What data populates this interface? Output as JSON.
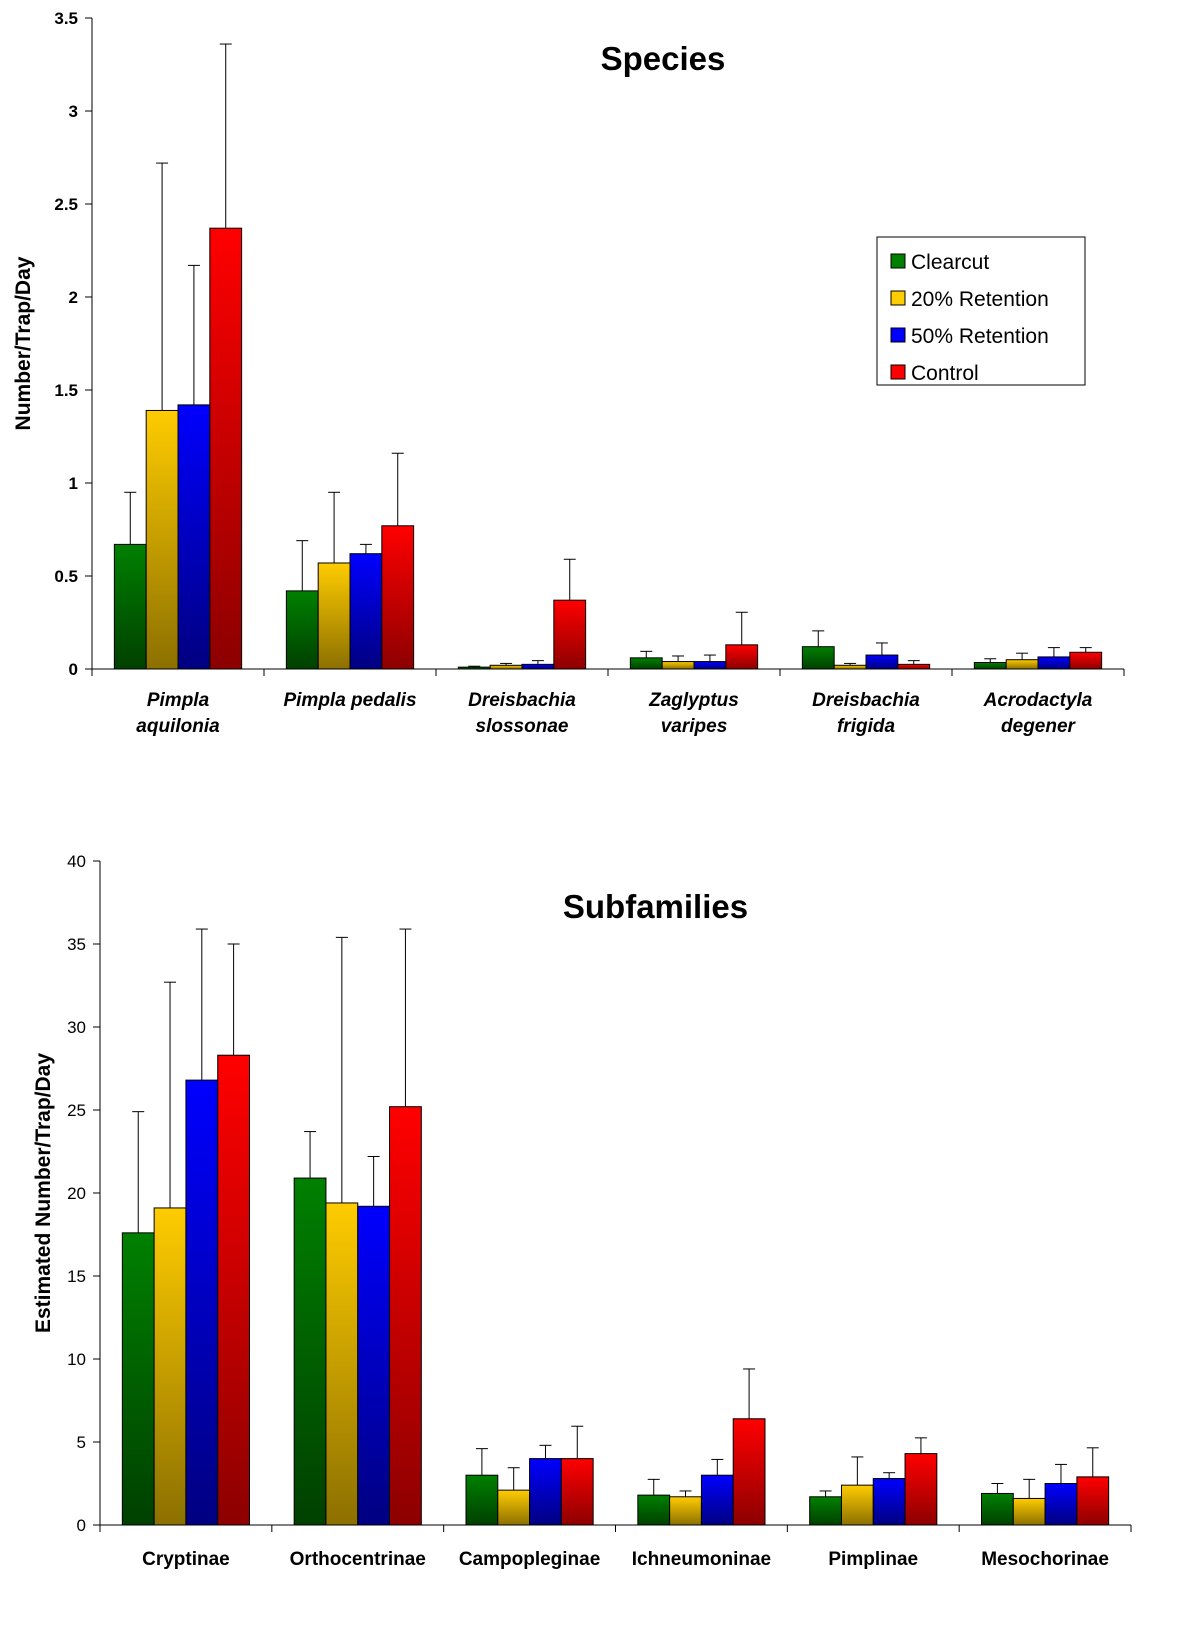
{
  "colors": {
    "series_top": [
      "#008000",
      "#FFCC00",
      "#0000FF",
      "#FF0000"
    ],
    "series_bottom": [
      "#004000",
      "#8C7000",
      "#000080",
      "#8C0000"
    ]
  },
  "chart_data": [
    {
      "type": "bar",
      "title": "Species",
      "xlabel": "",
      "ylabel": "Number/Trap/Day",
      "ylim": [
        0,
        3.5
      ],
      "yticks": [
        "0",
        "0.5",
        "1",
        "1.5",
        "2",
        "2.5",
        "3",
        "3.5"
      ],
      "categories": [
        [
          "Pimpla",
          "aquilonia"
        ],
        [
          "Pimpla pedalis"
        ],
        [
          "Dreisbachia",
          "slossonae"
        ],
        [
          "Zaglyptus",
          "varipes"
        ],
        [
          "Dreisbachia",
          "frigida"
        ],
        [
          "Acrodactyla",
          "degener"
        ]
      ],
      "grid": false,
      "legend_position": "right",
      "series": [
        {
          "name": "Clearcut",
          "values": [
            0.67,
            0.42,
            0.01,
            0.06,
            0.12,
            0.035
          ],
          "error": [
            0.28,
            0.27,
            0.005,
            0.035,
            0.085,
            0.02
          ]
        },
        {
          "name": "20% Retention",
          "values": [
            1.39,
            0.57,
            0.02,
            0.04,
            0.02,
            0.05
          ],
          "error": [
            1.33,
            0.38,
            0.01,
            0.03,
            0.01,
            0.035
          ]
        },
        {
          "name": "50% Retention",
          "values": [
            1.42,
            0.62,
            0.025,
            0.04,
            0.075,
            0.065
          ],
          "error": [
            0.75,
            0.05,
            0.02,
            0.035,
            0.065,
            0.05
          ]
        },
        {
          "name": "Control",
          "values": [
            2.37,
            0.77,
            0.37,
            0.13,
            0.025,
            0.09
          ],
          "error": [
            0.99,
            0.39,
            0.22,
            0.175,
            0.02,
            0.025
          ]
        }
      ]
    },
    {
      "type": "bar",
      "title": "Subfamilies",
      "xlabel": "",
      "ylabel": "Estimated Number/Trap/Day",
      "ylim": [
        0,
        40
      ],
      "yticks": [
        "0",
        "5",
        "10",
        "15",
        "20",
        "25",
        "30",
        "35",
        "40"
      ],
      "categories": [
        [
          "Cryptinae"
        ],
        [
          "Orthocentrinae"
        ],
        [
          "Campopleginae"
        ],
        [
          "Ichneumoninae"
        ],
        [
          "Pimplinae"
        ],
        [
          "Mesochorinae"
        ]
      ],
      "grid": false,
      "series": [
        {
          "name": "Clearcut",
          "values": [
            17.6,
            20.9,
            3.0,
            1.8,
            1.7,
            1.9
          ],
          "error": [
            7.3,
            2.8,
            1.6,
            0.95,
            0.35,
            0.6
          ]
        },
        {
          "name": "20% Retention",
          "values": [
            19.1,
            19.4,
            2.1,
            1.7,
            2.4,
            1.6
          ],
          "error": [
            13.6,
            16.0,
            1.35,
            0.35,
            1.7,
            1.15
          ]
        },
        {
          "name": "50% Retention",
          "values": [
            26.8,
            19.2,
            4.0,
            3.0,
            2.8,
            2.5
          ],
          "error": [
            9.1,
            3.0,
            0.8,
            0.95,
            0.35,
            1.15
          ]
        },
        {
          "name": "Control",
          "values": [
            28.3,
            25.2,
            4.0,
            6.4,
            4.3,
            2.9
          ],
          "error": [
            6.7,
            10.7,
            1.95,
            3.0,
            0.95,
            1.75
          ]
        }
      ]
    }
  ]
}
